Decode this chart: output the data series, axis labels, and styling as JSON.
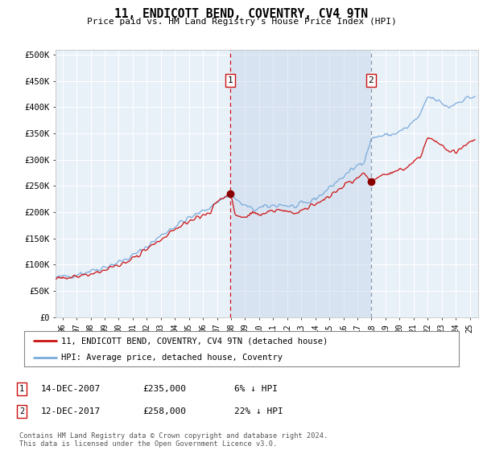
{
  "title": "11, ENDICOTT BEND, COVENTRY, CV4 9TN",
  "subtitle": "Price paid vs. HM Land Registry's House Price Index (HPI)",
  "ylabel_ticks": [
    "£0",
    "£50K",
    "£100K",
    "£150K",
    "£200K",
    "£250K",
    "£300K",
    "£350K",
    "£400K",
    "£450K",
    "£500K"
  ],
  "ytick_values": [
    0,
    50000,
    100000,
    150000,
    200000,
    250000,
    300000,
    350000,
    400000,
    450000,
    500000
  ],
  "ylim": [
    0,
    510000
  ],
  "xlim_start": 1995.5,
  "xlim_end": 2025.6,
  "background_color": "#ffffff",
  "plot_bg_color": "#e8f0f8",
  "grid_color": "#ffffff",
  "legend_label_red": "11, ENDICOTT BEND, COVENTRY, CV4 9TN (detached house)",
  "legend_label_blue": "HPI: Average price, detached house, Coventry",
  "transaction1_date": "14-DEC-2007",
  "transaction1_price": "£235,000",
  "transaction1_hpi": "6% ↓ HPI",
  "transaction2_date": "12-DEC-2017",
  "transaction2_price": "£258,000",
  "transaction2_hpi": "22% ↓ HPI",
  "copyright_text": "Contains HM Land Registry data © Crown copyright and database right 2024.\nThis data is licensed under the Open Government Licence v3.0.",
  "vline1_year": 2007.96,
  "vline2_year": 2017.96,
  "marker1_year": 2007.96,
  "marker1_value": 235000,
  "marker2_year": 2017.96,
  "marker2_value": 258000,
  "xtick_years": [
    1996,
    1997,
    1998,
    1999,
    2000,
    2001,
    2002,
    2003,
    2004,
    2005,
    2006,
    2007,
    2008,
    2009,
    2010,
    2011,
    2012,
    2013,
    2014,
    2015,
    2016,
    2017,
    2018,
    2019,
    2020,
    2021,
    2022,
    2023,
    2024,
    2025
  ]
}
